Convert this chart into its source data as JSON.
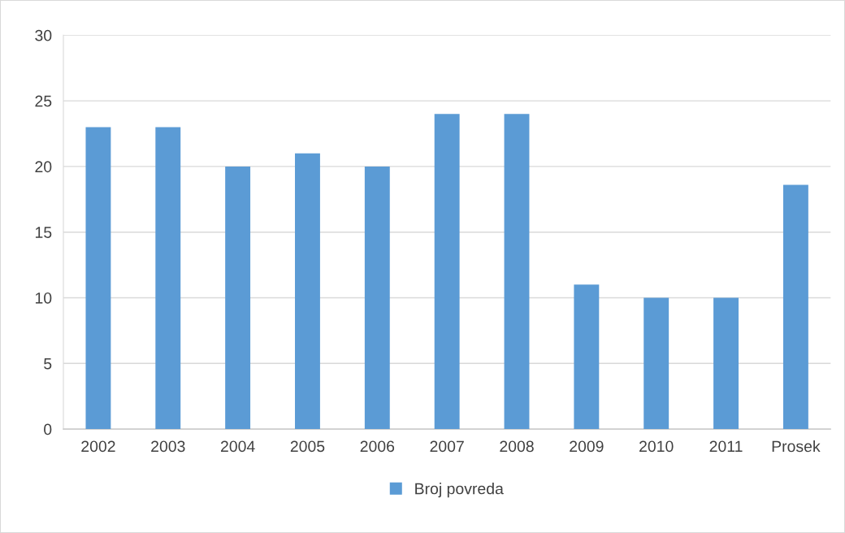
{
  "chart_data": {
    "type": "bar",
    "categories": [
      "2002",
      "2003",
      "2004",
      "2005",
      "2006",
      "2007",
      "2008",
      "2009",
      "2010",
      "2011",
      "Prosek"
    ],
    "series": [
      {
        "name": "Broj povreda",
        "color": "#5b9bd5",
        "values": [
          23,
          23,
          20,
          21,
          20,
          24,
          24,
          11,
          10,
          10,
          18.6
        ]
      }
    ],
    "ylim": [
      0,
      30
    ],
    "yticks": [
      0,
      5,
      10,
      15,
      20,
      25,
      30
    ],
    "grid": "y",
    "legend": "bottom"
  }
}
